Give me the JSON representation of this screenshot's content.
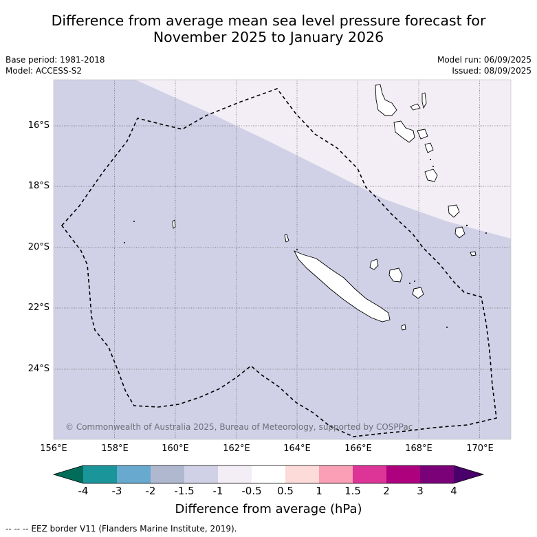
{
  "title_line1": "Difference from average mean sea level pressure forecast for",
  "title_line2": "November 2025 to January 2026",
  "base_period": "Base period: 1981-2018",
  "model": "Model: ACCESS-S2",
  "model_run": "Model run: 06/09/2025",
  "issued": "Issued: 08/09/2025",
  "map": {
    "lat_labels": [
      "16°S",
      "18°S",
      "20°S",
      "22°S",
      "24°S"
    ],
    "lon_labels": [
      "156°E",
      "158°E",
      "160°E",
      "162°E",
      "164°E",
      "166°E",
      "168°E",
      "170°E"
    ],
    "copyright": "© Commonwealth of Australia 2025, Bureau of Meteorology, supported by COSPPac",
    "colors": {
      "neg_1_5_to_neg_1": "#d0d1e6",
      "neg_1_to_neg_0_5": "#f3eef6"
    }
  },
  "colorbar": {
    "ticks": [
      "-4",
      "-3",
      "-2",
      "-1.5",
      "-1",
      "-0.5",
      "0.5",
      "1",
      "1.5",
      "2",
      "3",
      "4"
    ],
    "colors": [
      "#1a9599",
      "#67a9cf",
      "#b0b8d0",
      "#d0d1e6",
      "#f3eef6",
      "#ffffff",
      "#fddbd8",
      "#fa9fb5",
      "#dd3497",
      "#ae017e",
      "#7a0177"
    ],
    "extend_low_color": "#016c59",
    "extend_high_color": "#49006a",
    "label": "Difference from average (hPa)"
  },
  "footer": "-- -- -- EEZ border V11 (Flanders Marine Institute, 2019)."
}
